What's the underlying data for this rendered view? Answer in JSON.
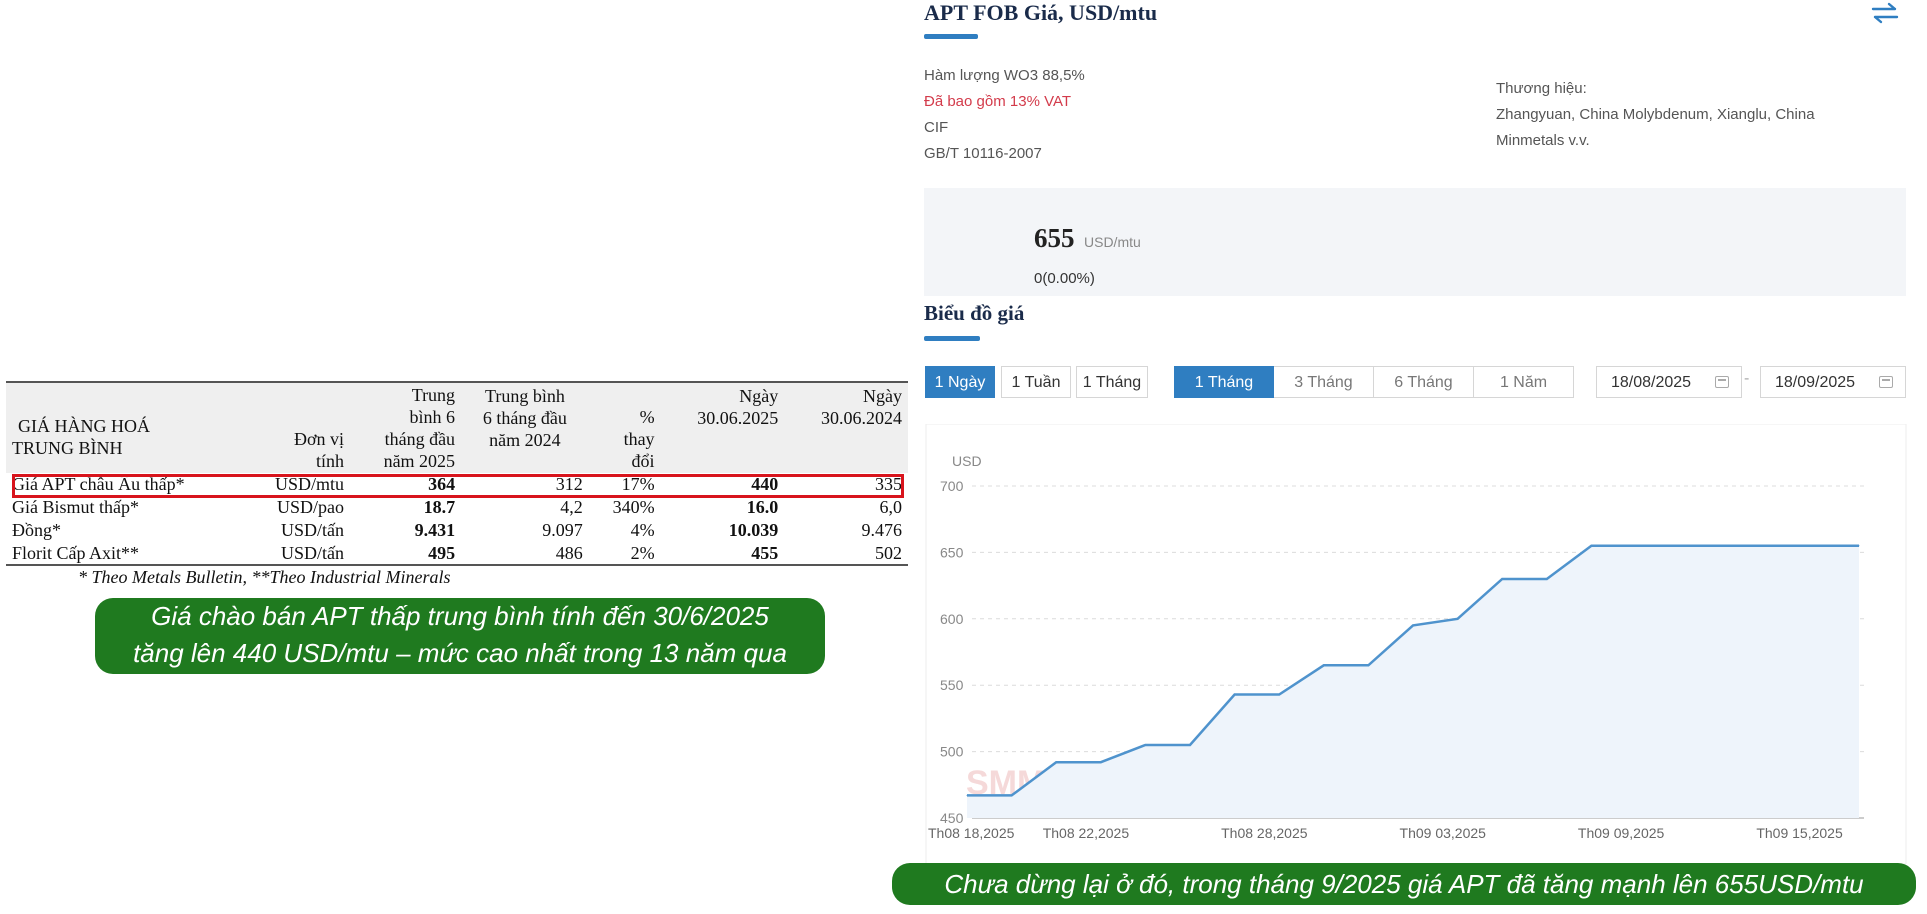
{
  "table": {
    "headers": {
      "name": [
        "GIÁ HÀNG HOÁ",
        "TRUNG BÌNH"
      ],
      "unit": [
        "Đơn vị",
        "tính"
      ],
      "avg_h1_2025": [
        "Trung",
        "bình 6",
        "tháng đầu",
        "năm 2025"
      ],
      "avg_h1_2024": [
        "Trung bình",
        "6 tháng đầu",
        "năm 2024"
      ],
      "pct_change": [
        "%",
        "thay",
        "đổi"
      ],
      "date_2025": [
        "Ngày",
        "30.06.2025"
      ],
      "date_2024": [
        "Ngày",
        "30.06.2024"
      ]
    },
    "rows": [
      {
        "name": "Giá APT châu Âu thấp*",
        "unit": "USD/mtu",
        "avg_2025": "364",
        "avg_2024": "312",
        "change": "17%",
        "d2025": "440",
        "d2024": "335"
      },
      {
        "name": "Giá Bismut thấp*",
        "unit": "USD/pao",
        "avg_2025": "18.7",
        "avg_2024": "4,2",
        "change": "340%",
        "d2025": "16.0",
        "d2024": "6,0"
      },
      {
        "name": "Đồng*",
        "unit": "USD/tấn",
        "avg_2025": "9.431",
        "avg_2024": "9.097",
        "change": "4%",
        "d2025": "10.039",
        "d2024": "9.476"
      },
      {
        "name": "Florit Cấp Axit**",
        "unit": "USD/tấn",
        "avg_2025": "495",
        "avg_2024": "486",
        "change": "2%",
        "d2025": "455",
        "d2024": "502"
      }
    ],
    "note": "* Theo Metals Bulletin, **Theo Industrial Minerals"
  },
  "captions": {
    "left": [
      "Giá chào bán APT thấp trung bình tính đến 30/6/2025",
      "tăng lên 440 USD/mtu – mức cao nhất trong 13 năm qua"
    ],
    "right": "Chưa dừng lại ở đó, trong tháng 9/2025 giá APT đã tăng mạnh lên 655USD/mtu"
  },
  "price_panel": {
    "title": "APT FOB Giá, USD/mtu",
    "specs": [
      "Hàm lượng WO3 88,5%",
      "Đã bao gồm 13% VAT",
      "CIF",
      "GB/T 10116-2007"
    ],
    "brand_label": "Thương hiệu:",
    "brand_value": "Zhangyuan, China Molybdenum, Xianglu, China Minmetals v.v.",
    "current_price": "655",
    "current_unit": "USD/mtu",
    "change": "0(0.00%)",
    "chart_heading": "Biểu đồ giá",
    "interval_buttons": [
      "1 Ngày",
      "1 Tuần",
      "1 Tháng"
    ],
    "range_buttons": [
      "1 Tháng",
      "3 Tháng",
      "6 Tháng",
      "1 Năm"
    ],
    "date_from": "18/08/2025",
    "date_to": "18/09/2025",
    "date_sep": "-",
    "accent_color": "#2f7ec1",
    "caption_color": "#1f7a1f",
    "highlight_color": "#d8141c"
  },
  "chart_data": {
    "type": "area",
    "ylabel": "USD",
    "ylim": [
      450,
      700
    ],
    "yticks": [
      700,
      650,
      600,
      550,
      500,
      450
    ],
    "x_ticks": [
      "Th08 18,2025",
      "Th08 22,2025",
      "Th08 28,2025",
      "Th09 03,2025",
      "Th09 09,2025",
      "Th09 15,2025"
    ],
    "x_tick_days": [
      0,
      4,
      10,
      16,
      22,
      28
    ],
    "x_span_days": 30,
    "series": [
      {
        "x_days": [
          0,
          1.5,
          3,
          4.5,
          6,
          7.5,
          9,
          10.5,
          12,
          13.5,
          15,
          16.5,
          18,
          19.5,
          21,
          30
        ],
        "values": [
          467,
          467,
          492,
          492,
          505,
          505,
          543,
          543,
          565,
          565,
          595,
          600,
          630,
          630,
          655,
          655
        ],
        "color": "#4f93cd"
      }
    ],
    "grid": "horizontal dashed",
    "legend": "none",
    "watermark": "SMM"
  }
}
